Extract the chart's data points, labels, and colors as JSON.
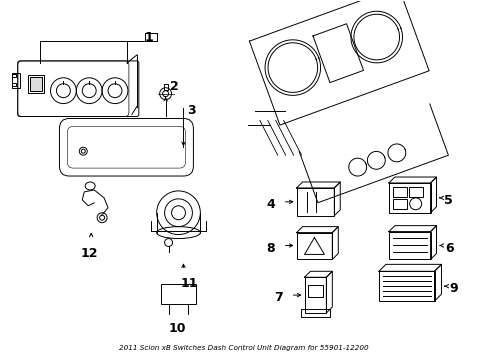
{
  "bg_color": "#ffffff",
  "line_color": "#000000",
  "figsize": [
    4.89,
    3.6
  ],
  "dpi": 100,
  "title": "2011 Scion xB Switches Dash Control Unit Diagram for 55901-12200"
}
